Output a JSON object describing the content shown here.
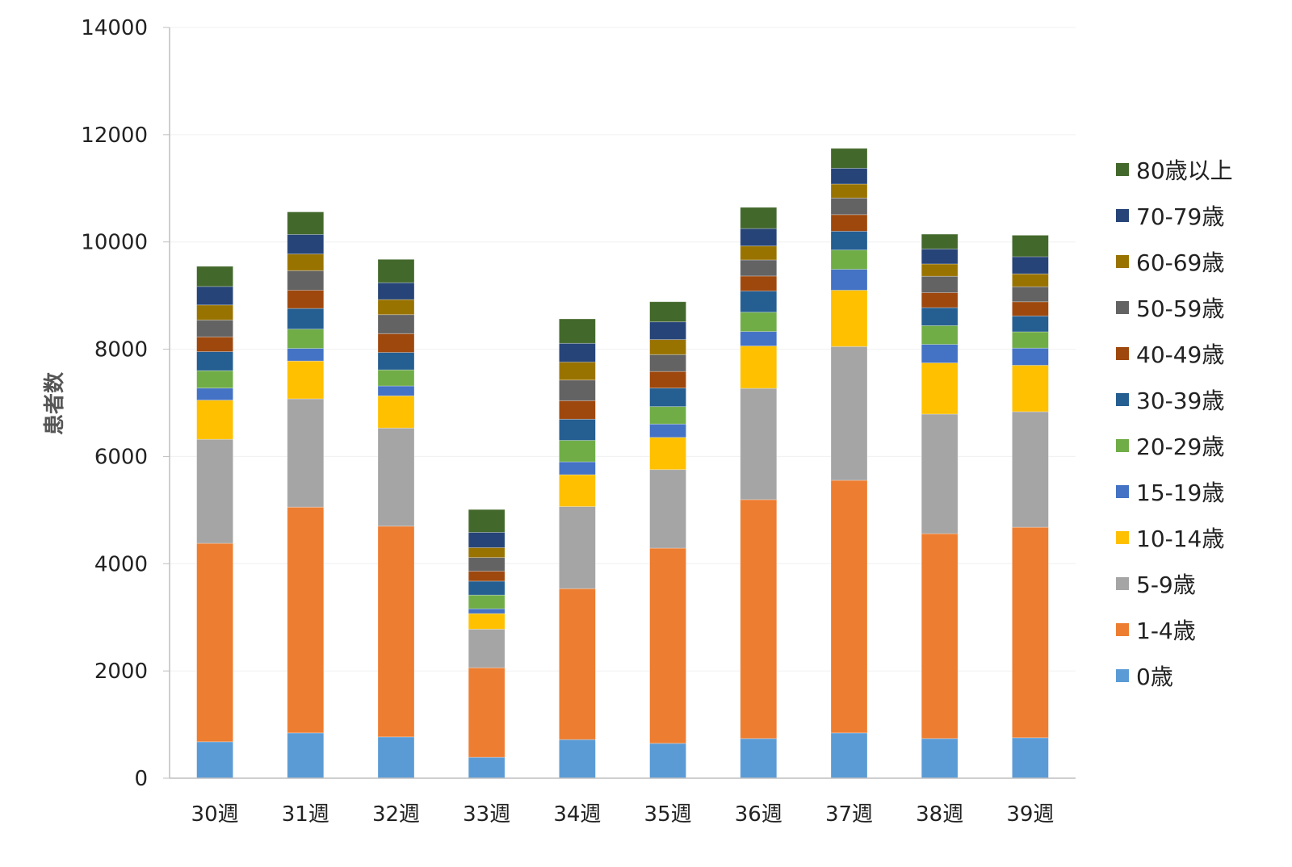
{
  "chart_data": {
    "type": "bar",
    "stacked": true,
    "title": "",
    "xlabel": "",
    "ylabel": "患者数",
    "ylim": [
      0,
      14000
    ],
    "yticks": [
      0,
      2000,
      4000,
      6000,
      8000,
      10000,
      12000,
      14000
    ],
    "grid": true,
    "legend_position": "right",
    "categories": [
      "30週",
      "31週",
      "32週",
      "33週",
      "34週",
      "35週",
      "36週",
      "37週",
      "38週",
      "39週"
    ],
    "series": [
      {
        "name": "0歳",
        "color": "#5B9BD5",
        "values": [
          680,
          845,
          770,
          390,
          720,
          650,
          740,
          845,
          740,
          755
        ]
      },
      {
        "name": "1-4歳",
        "color": "#ED7D31",
        "values": [
          3700,
          4210,
          3930,
          1670,
          2815,
          3640,
          4455,
          4710,
          3820,
          3925
        ]
      },
      {
        "name": "5-9歳",
        "color": "#A5A5A5",
        "values": [
          1940,
          2020,
          1830,
          720,
          1530,
          1465,
          2075,
          2495,
          2230,
          2155
        ]
      },
      {
        "name": "10-14歳",
        "color": "#FFC000",
        "values": [
          730,
          705,
          600,
          290,
          595,
          600,
          790,
          1050,
          955,
          865
        ]
      },
      {
        "name": "15-19歳",
        "color": "#4472C4",
        "values": [
          225,
          235,
          185,
          90,
          240,
          250,
          270,
          390,
          345,
          320
        ]
      },
      {
        "name": "20-29歳",
        "color": "#70AD47",
        "values": [
          325,
          360,
          300,
          255,
          400,
          325,
          360,
          360,
          350,
          305
        ]
      },
      {
        "name": "30-39歳",
        "color": "#255E91",
        "values": [
          355,
          385,
          325,
          260,
          395,
          345,
          395,
          350,
          335,
          295
        ]
      },
      {
        "name": "40-49歳",
        "color": "#9E480E",
        "values": [
          275,
          340,
          350,
          185,
          345,
          310,
          280,
          310,
          280,
          265
        ]
      },
      {
        "name": "50-59歳",
        "color": "#636363",
        "values": [
          315,
          365,
          355,
          255,
          385,
          315,
          300,
          310,
          305,
          280
        ]
      },
      {
        "name": "60-69歳",
        "color": "#997300",
        "values": [
          280,
          310,
          280,
          185,
          335,
          280,
          260,
          260,
          230,
          240
        ]
      },
      {
        "name": "70-79歳",
        "color": "#264478",
        "values": [
          345,
          365,
          315,
          285,
          350,
          330,
          325,
          295,
          280,
          320
        ]
      },
      {
        "name": "80歳以上",
        "color": "#43682B",
        "values": [
          375,
          420,
          435,
          425,
          455,
          375,
          395,
          370,
          275,
          400
        ]
      }
    ]
  }
}
